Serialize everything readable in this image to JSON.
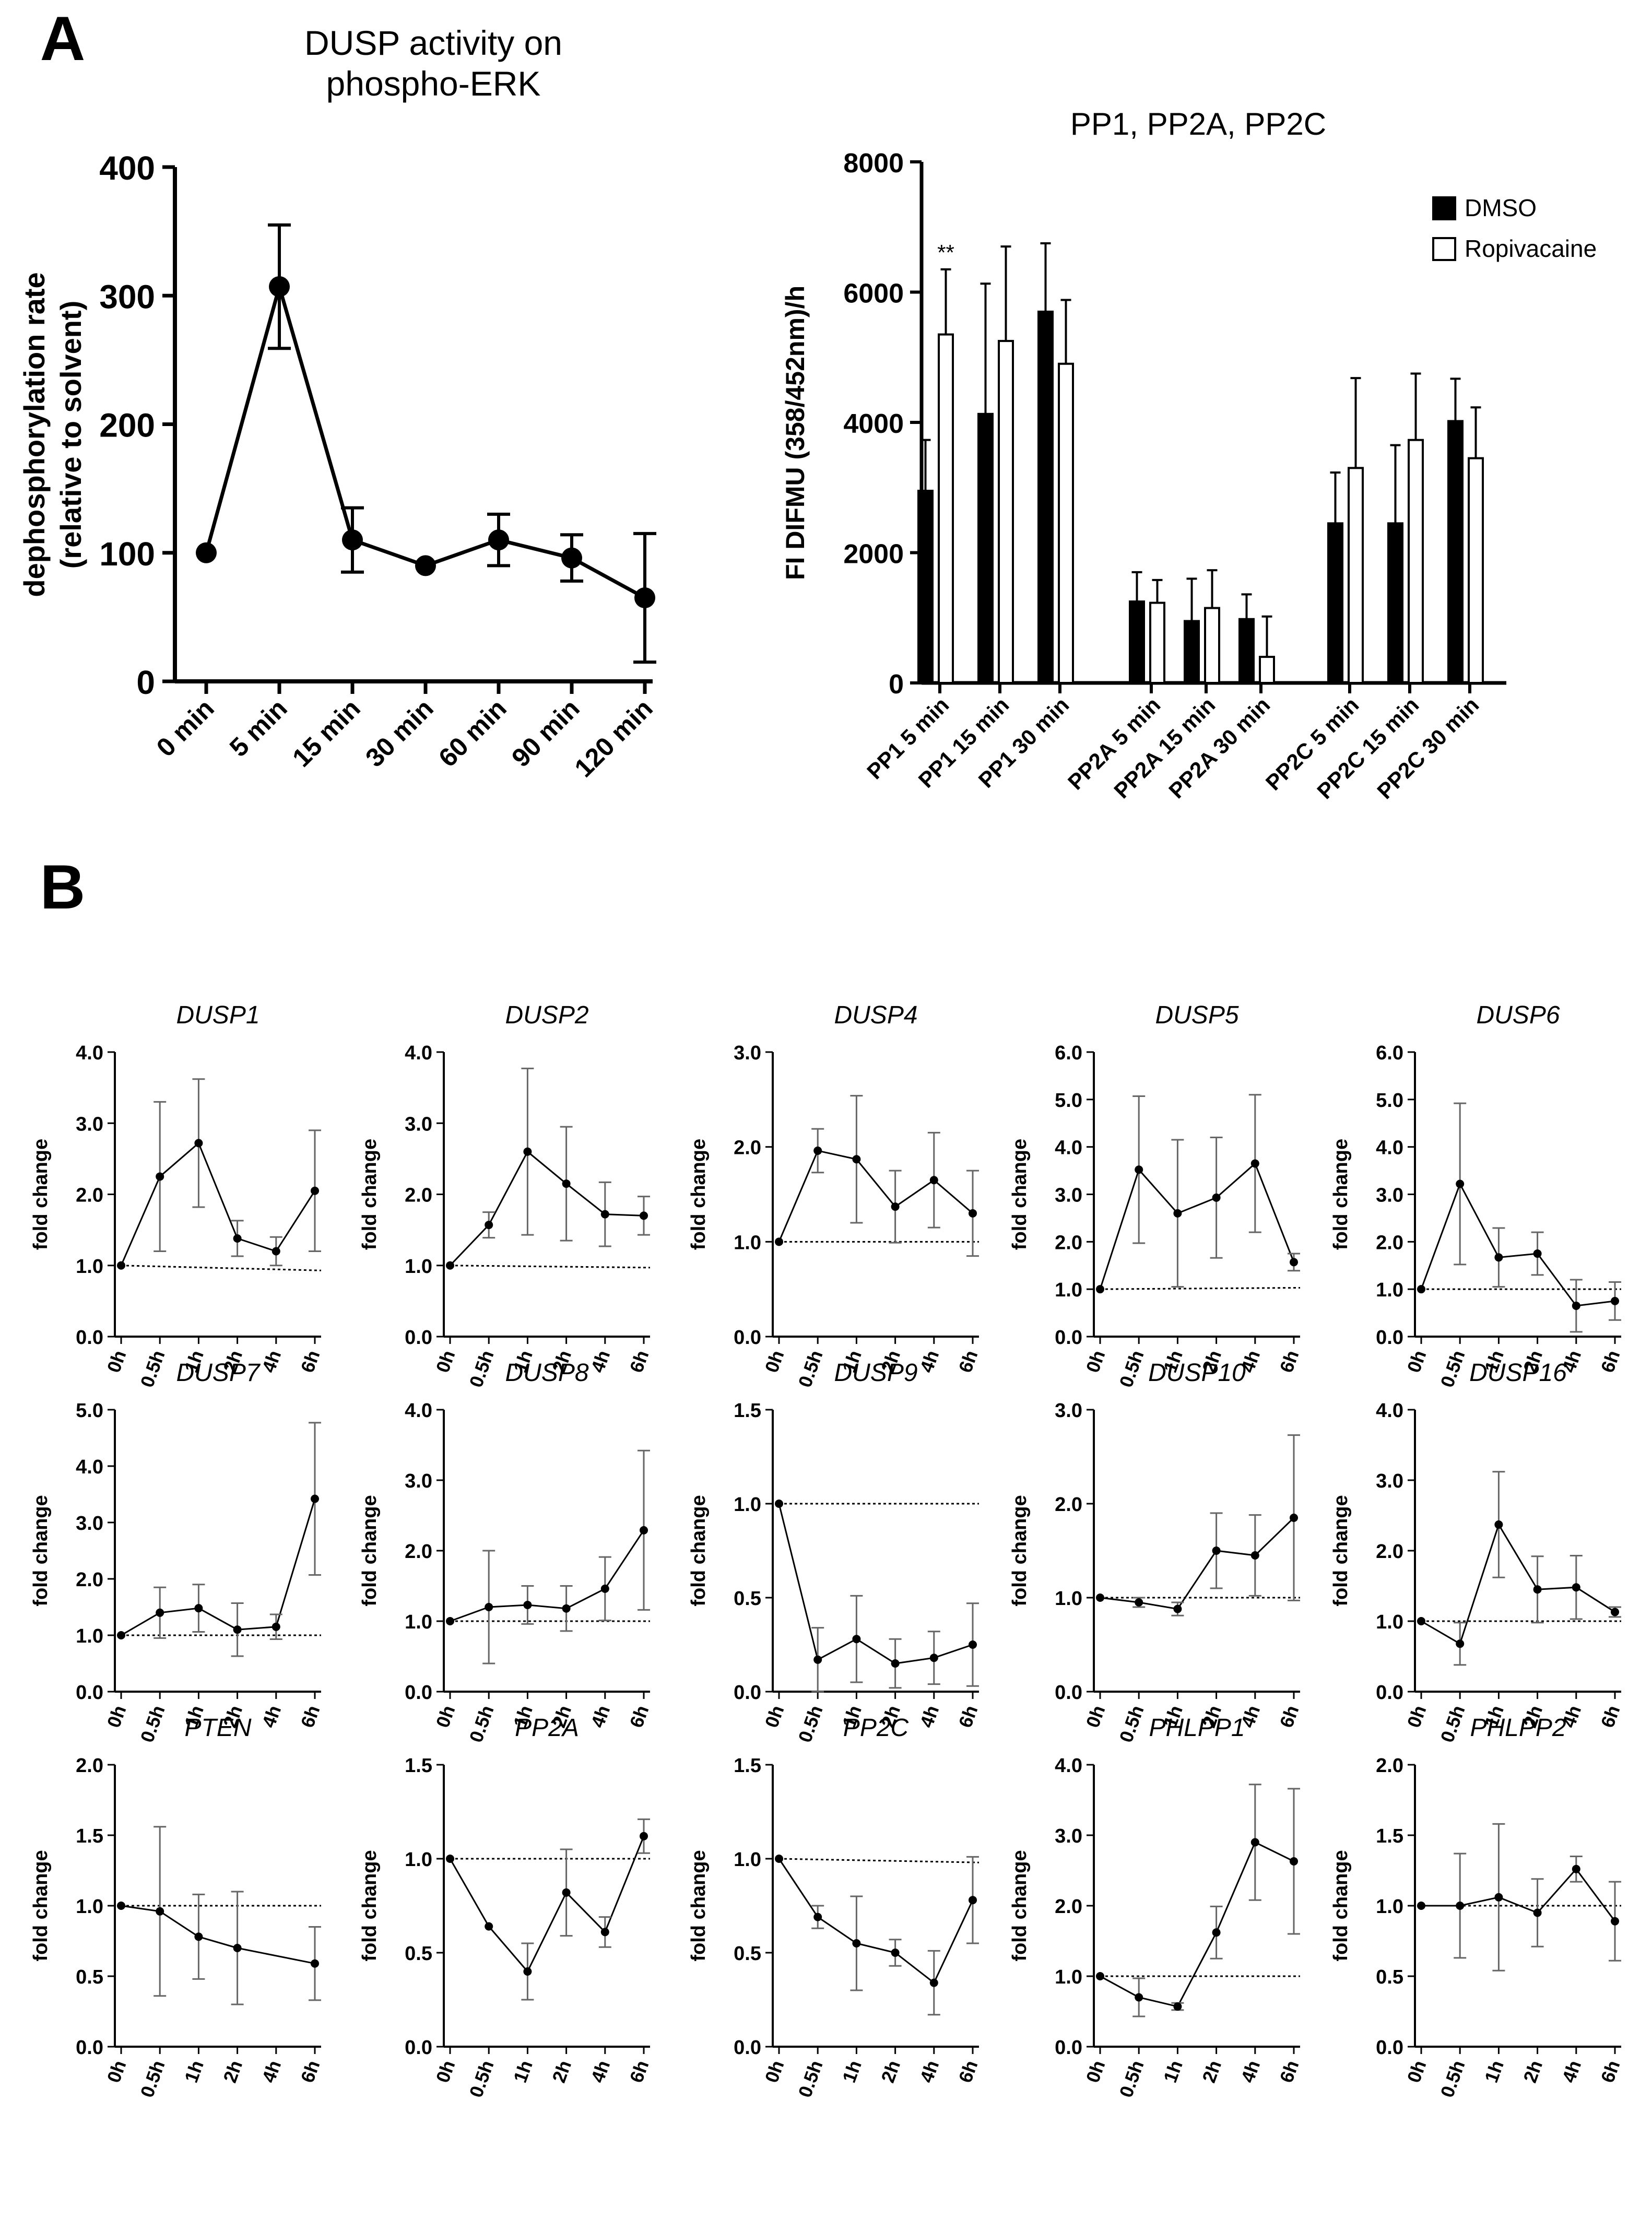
{
  "panel_labels": {
    "a": "A",
    "b": "B"
  },
  "chart_data": [
    {
      "id": "panelA_line",
      "type": "line",
      "title": [
        "DUSP activity on",
        "phospho-ERK"
      ],
      "ylabel": [
        "dephosphorylation rate",
        "(relative to solvent)"
      ],
      "xlabel": "",
      "categories": [
        "0 min",
        "5 min",
        "15 min",
        "30 min",
        "60 min",
        "90 min",
        "120 min"
      ],
      "values": [
        100,
        307,
        110,
        90,
        110,
        96,
        65
      ],
      "errors": [
        0,
        48,
        25,
        0,
        20,
        18,
        50
      ],
      "yticks": [
        0,
        100,
        200,
        300,
        400
      ],
      "ylim": [
        0,
        400
      ]
    },
    {
      "id": "panelA_bar",
      "type": "bar",
      "title": "PP1, PP2A, PP2C",
      "ylabel": "FI DIFMU (358/452nm)/h",
      "categories": [
        "PP1 5 min",
        "PP1 15 min",
        "PP1 30 min",
        "PP2A 5 min",
        "PP2A 15 min",
        "PP2A 30 min",
        "PP2C 5 min",
        "PP2C 15 min",
        "PP2C 30 min"
      ],
      "series": [
        {
          "name": "DMSO",
          "color": "#000000",
          "values": [
            2950,
            4130,
            5700,
            1250,
            950,
            980,
            2450,
            2450,
            4020
          ],
          "errors": [
            780,
            2000,
            1050,
            450,
            650,
            380,
            780,
            1200,
            650
          ]
        },
        {
          "name": "Ropivacaine",
          "color": "#ffffff",
          "values": [
            5350,
            5250,
            4900,
            1230,
            1150,
            400,
            3300,
            3730,
            3450
          ],
          "errors": [
            1000,
            1450,
            980,
            350,
            580,
            620,
            1380,
            1020,
            780
          ]
        }
      ],
      "annotations": [
        {
          "category": "PP1 5 min",
          "series": "Ropivacaine",
          "text": "**"
        }
      ],
      "yticks": [
        0,
        2000,
        4000,
        6000,
        8000
      ],
      "ylim": [
        0,
        8000
      ]
    },
    {
      "id": "DUSP1",
      "type": "line",
      "title": "DUSP1",
      "ylabel": "fold change",
      "categories": [
        "0h",
        "0.5h",
        "1h",
        "2h",
        "4h",
        "6h"
      ],
      "values": [
        1.0,
        2.25,
        2.72,
        1.38,
        1.2,
        2.05
      ],
      "errors": [
        0,
        1.05,
        0.9,
        0.25,
        0.2,
        0.85
      ],
      "ref_line": [
        1.0,
        0.93
      ],
      "ylim": [
        0,
        4
      ],
      "yticks": [
        "0.0",
        "1.0",
        "2.0",
        "3.0",
        "4.0"
      ]
    },
    {
      "id": "DUSP2",
      "type": "line",
      "title": "DUSP2",
      "ylabel": "fold change",
      "categories": [
        "0h",
        "0.5h",
        "1h",
        "2h",
        "4h",
        "6h"
      ],
      "values": [
        1.0,
        1.57,
        2.6,
        2.15,
        1.72,
        1.7
      ],
      "errors": [
        0,
        0.18,
        1.17,
        0.8,
        0.45,
        0.27
      ],
      "ref_line": [
        1.0,
        0.97
      ],
      "ylim": [
        0,
        4
      ],
      "yticks": [
        "0.0",
        "1.0",
        "2.0",
        "3.0",
        "4.0"
      ]
    },
    {
      "id": "DUSP4",
      "type": "line",
      "title": "DUSP4",
      "ylabel": "fold change",
      "categories": [
        "0h",
        "0.5h",
        "1h",
        "2h",
        "4h",
        "6h"
      ],
      "values": [
        1.0,
        1.96,
        1.87,
        1.37,
        1.65,
        1.3
      ],
      "errors": [
        0,
        0.23,
        0.67,
        0.38,
        0.5,
        0.45
      ],
      "ref_line": [
        1.0,
        1.0
      ],
      "ylim": [
        0,
        3
      ],
      "yticks": [
        "0.0",
        "1.0",
        "2.0",
        "3.0"
      ]
    },
    {
      "id": "DUSP5",
      "type": "line",
      "title": "DUSP5",
      "ylabel": "fold change",
      "categories": [
        "0h",
        "0.5h",
        "1h",
        "2h",
        "4h",
        "6h"
      ],
      "values": [
        1.0,
        3.52,
        2.6,
        2.93,
        3.65,
        1.57
      ],
      "errors": [
        0,
        1.55,
        1.55,
        1.27,
        1.45,
        0.18
      ],
      "ref_line": [
        1.0,
        1.03
      ],
      "ylim": [
        0,
        6
      ],
      "yticks": [
        "0.0",
        "1.0",
        "2.0",
        "3.0",
        "4.0",
        "5.0",
        "6.0"
      ]
    },
    {
      "id": "DUSP6",
      "type": "line",
      "title": "DUSP6",
      "ylabel": "fold change",
      "categories": [
        "0h",
        "0.5h",
        "1h",
        "2h",
        "4h",
        "6h"
      ],
      "values": [
        1.0,
        3.22,
        1.67,
        1.75,
        0.65,
        0.75
      ],
      "errors": [
        0,
        1.7,
        0.62,
        0.45,
        0.55,
        0.4
      ],
      "ref_line": [
        1.0,
        1.0
      ],
      "ylim": [
        0,
        6
      ],
      "yticks": [
        "0.0",
        "1.0",
        "2.0",
        "3.0",
        "4.0",
        "5.0",
        "6.0"
      ]
    },
    {
      "id": "DUSP7",
      "type": "line",
      "title": "DUSP7",
      "ylabel": "fold change",
      "categories": [
        "0h",
        "0.5h",
        "1h",
        "2h",
        "4h",
        "6h"
      ],
      "values": [
        1.0,
        1.4,
        1.48,
        1.1,
        1.15,
        3.42
      ],
      "errors": [
        0,
        0.45,
        0.42,
        0.47,
        0.22,
        1.35
      ],
      "ref_line": [
        1.0,
        1.0
      ],
      "ylim": [
        0,
        5
      ],
      "yticks": [
        "0.0",
        "1.0",
        "2.0",
        "3.0",
        "4.0",
        "5.0"
      ]
    },
    {
      "id": "DUSP8",
      "type": "line",
      "title": "DUSP8",
      "ylabel": "fold change",
      "categories": [
        "0h",
        "0.5h",
        "1h",
        "2h",
        "4h",
        "6h"
      ],
      "values": [
        1.0,
        1.2,
        1.23,
        1.18,
        1.46,
        2.29
      ],
      "errors": [
        0,
        0.8,
        0.27,
        0.32,
        0.45,
        1.13
      ],
      "ref_line": [
        1.0,
        1.0
      ],
      "ylim": [
        0,
        4
      ],
      "yticks": [
        "0.0",
        "1.0",
        "2.0",
        "3.0",
        "4.0"
      ]
    },
    {
      "id": "DUSP9",
      "type": "line",
      "title": "DUSP9",
      "ylabel": "fold change",
      "categories": [
        "0h",
        "0.5h",
        "1h",
        "2h",
        "4h",
        "6h"
      ],
      "values": [
        1.0,
        0.17,
        0.28,
        0.15,
        0.18,
        0.25
      ],
      "errors": [
        0,
        0.17,
        0.23,
        0.13,
        0.14,
        0.22
      ],
      "ref_line": [
        1.0,
        1.0
      ],
      "ylim": [
        0,
        1.5
      ],
      "yticks": [
        "0.0",
        "0.5",
        "1.0",
        "1.5"
      ]
    },
    {
      "id": "DUSP10",
      "type": "line",
      "title": "DUSP10",
      "ylabel": "fold change",
      "categories": [
        "0h",
        "0.5h",
        "1h",
        "2h",
        "4h",
        "6h"
      ],
      "values": [
        1.0,
        0.95,
        0.88,
        1.5,
        1.45,
        1.85
      ],
      "errors": [
        0,
        0.05,
        0.07,
        0.4,
        0.43,
        0.88
      ],
      "ref_line": [
        1.0,
        1.0
      ],
      "ylim": [
        0,
        3
      ],
      "yticks": [
        "0.0",
        "1.0",
        "2.0",
        "3.0"
      ]
    },
    {
      "id": "DUSP16",
      "type": "line",
      "title": "DUSP16",
      "ylabel": "fold change",
      "categories": [
        "0h",
        "0.5h",
        "1h",
        "2h",
        "4h",
        "6h"
      ],
      "values": [
        1.0,
        0.68,
        2.37,
        1.45,
        1.48,
        1.13
      ],
      "errors": [
        0,
        0.3,
        0.75,
        0.47,
        0.45,
        0.07
      ],
      "ref_line": [
        1.0,
        1.0
      ],
      "ylim": [
        0,
        4
      ],
      "yticks": [
        "0.0",
        "1.0",
        "2.0",
        "3.0",
        "4.0"
      ]
    },
    {
      "id": "PTEN",
      "type": "line",
      "title": "PTEN",
      "ylabel": "fold change",
      "categories": [
        "0h",
        "0.5h",
        "1h",
        "2h",
        "4h",
        "6h"
      ],
      "values": [
        1.0,
        0.96,
        0.78,
        0.7,
        null,
        0.59
      ],
      "errors": [
        0,
        0.6,
        0.3,
        0.4,
        null,
        0.26
      ],
      "ref_line": [
        1.0,
        1.0
      ],
      "ylim": [
        0,
        2
      ],
      "yticks": [
        "0.0",
        "0.5",
        "1.0",
        "1.5",
        "2.0"
      ]
    },
    {
      "id": "PP2A",
      "type": "line",
      "title": "PP2A",
      "ylabel": "fold change",
      "categories": [
        "0h",
        "0.5h",
        "1h",
        "2h",
        "4h",
        "6h"
      ],
      "values": [
        1.0,
        0.64,
        0.4,
        0.82,
        0.61,
        1.12
      ],
      "errors": [
        0,
        0,
        0.15,
        0.23,
        0.08,
        0.09
      ],
      "ref_line": [
        1.0,
        1.0
      ],
      "ylim": [
        0,
        1.5
      ],
      "yticks": [
        "0.0",
        "0.5",
        "1.0",
        "1.5"
      ]
    },
    {
      "id": "PP2C",
      "type": "line",
      "title": "PP2C",
      "ylabel": "fold change",
      "categories": [
        "0h",
        "0.5h",
        "1h",
        "2h",
        "4h",
        "6h"
      ],
      "values": [
        1.0,
        0.69,
        0.55,
        0.5,
        0.34,
        0.78
      ],
      "errors": [
        0,
        0.06,
        0.25,
        0.07,
        0.17,
        0.23
      ],
      "ref_line": [
        1.0,
        0.98
      ],
      "ylim": [
        0,
        1.5
      ],
      "yticks": [
        "0.0",
        "0.5",
        "1.0",
        "1.5"
      ]
    },
    {
      "id": "PHLPP1",
      "type": "line",
      "title": "PHLPP1",
      "ylabel": "fold change",
      "categories": [
        "0h",
        "0.5h",
        "1h",
        "2h",
        "4h",
        "6h"
      ],
      "values": [
        1.0,
        0.7,
        0.57,
        1.62,
        2.9,
        2.63
      ],
      "errors": [
        0,
        0.27,
        0.05,
        0.37,
        0.82,
        1.03
      ],
      "ref_line": [
        1.0,
        1.0
      ],
      "ylim": [
        0,
        4
      ],
      "yticks": [
        "0.0",
        "1.0",
        "2.0",
        "3.0",
        "4.0"
      ]
    },
    {
      "id": "PHLPP2",
      "type": "line",
      "title": "PHLPP2",
      "ylabel": "fold change",
      "categories": [
        "0h",
        "0.5h",
        "1h",
        "2h",
        "4h",
        "6h"
      ],
      "values": [
        1.0,
        1.0,
        1.06,
        0.95,
        1.26,
        0.89
      ],
      "errors": [
        0,
        0.37,
        0.52,
        0.24,
        0.09,
        0.28
      ],
      "ref_line": [
        1.0,
        1.0
      ],
      "ylim": [
        0,
        2
      ],
      "yticks": [
        "0.0",
        "0.5",
        "1.0",
        "1.5",
        "2.0"
      ]
    }
  ]
}
